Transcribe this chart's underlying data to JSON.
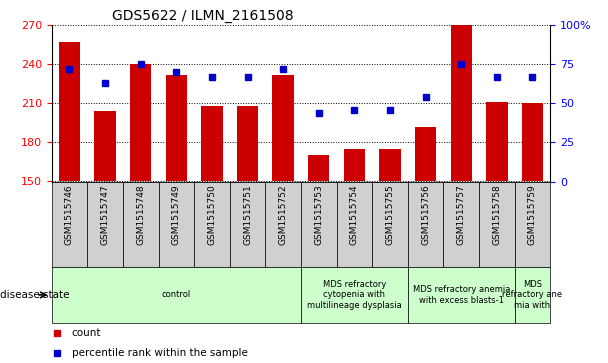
{
  "title": "GDS5622 / ILMN_2161508",
  "samples": [
    "GSM1515746",
    "GSM1515747",
    "GSM1515748",
    "GSM1515749",
    "GSM1515750",
    "GSM1515751",
    "GSM1515752",
    "GSM1515753",
    "GSM1515754",
    "GSM1515755",
    "GSM1515756",
    "GSM1515757",
    "GSM1515758",
    "GSM1515759"
  ],
  "counts": [
    257,
    204,
    240,
    232,
    208,
    208,
    232,
    170,
    175,
    175,
    192,
    271,
    211,
    210
  ],
  "percentile_ranks": [
    72,
    63,
    75,
    70,
    67,
    67,
    72,
    44,
    46,
    46,
    54,
    75,
    67,
    67
  ],
  "ylim_left": [
    150,
    270
  ],
  "ylim_right": [
    0,
    100
  ],
  "yticks_left": [
    150,
    180,
    210,
    240,
    270
  ],
  "yticks_right": [
    0,
    25,
    50,
    75,
    100
  ],
  "bar_color": "#cc0000",
  "dot_color": "#0000cc",
  "bar_width": 0.6,
  "disease_groups": [
    {
      "label": "control",
      "start": 0,
      "end": 6
    },
    {
      "label": "MDS refractory\ncytopenia with\nmultilineage dysplasia",
      "start": 7,
      "end": 9
    },
    {
      "label": "MDS refractory anemia\nwith excess blasts-1",
      "start": 10,
      "end": 12
    },
    {
      "label": "MDS\nrefractory ane\nmia with",
      "start": 13,
      "end": 13
    }
  ],
  "disease_group_color": "#ccffcc",
  "xtick_box_color": "#d0d0d0",
  "disease_state_label": "disease state",
  "legend_count_label": "count",
  "legend_percentile_label": "percentile rank within the sample",
  "background_color": "#ffffff"
}
